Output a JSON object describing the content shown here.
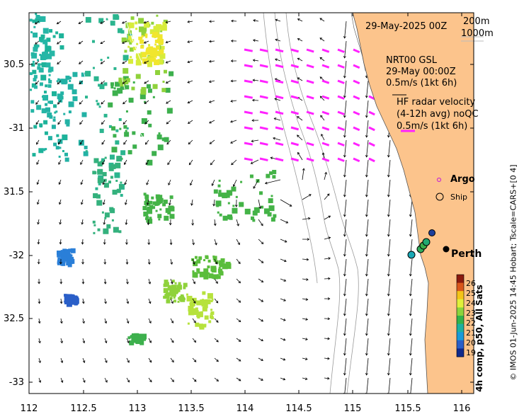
{
  "map": {
    "date_title": "29-May-2025 00Z",
    "isobath_labels": [
      "200m",
      "1000m"
    ],
    "nrt_title": "NRT00 GSL",
    "nrt_date": "29-May 00:00Z",
    "nrt_scale": "0.5m/s (1kt 6h)",
    "hf_title": "HF radar velocity",
    "hf_avg": "(4-12h avg) noQC",
    "hf_scale": "0.5m/s (1kt 6h)",
    "legend_argo": "Argo",
    "legend_ship": "Ship",
    "city": "Perth",
    "side_caption": "4h comp, p50, All Sats",
    "credit": "© IMOS 01-Jun-2025 14:45 Hobart; Tscale=CARS+[0 4]"
  },
  "axes": {
    "lon_ticks": [
      "112",
      "112.5",
      "113",
      "113.5",
      "114",
      "114.5",
      "115",
      "115.5",
      "116"
    ],
    "lat_ticks": [
      "30.5",
      "-31",
      "31.5",
      "-32",
      "32.5",
      "-33"
    ]
  },
  "colorbar": {
    "ticks": [
      "26",
      "25",
      "24",
      "23",
      "22",
      "21",
      "20",
      "19"
    ],
    "colors": [
      "#8b1a0e",
      "#d9561b",
      "#f4c418",
      "#e0f03a",
      "#8ad43c",
      "#33b34a",
      "#1db0a0",
      "#1a9ad8",
      "#2a5fc8",
      "#102a8c"
    ]
  },
  "colors": {
    "land": "#fcc48c",
    "hf_vectors": "#ff22ff",
    "argo": "#cc33cc"
  }
}
